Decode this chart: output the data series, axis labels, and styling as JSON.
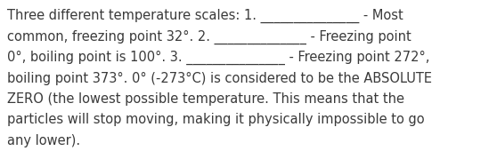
{
  "background_color": "#ffffff",
  "text_color": "#3a3a3a",
  "font_size": 10.5,
  "line1": "Three different temperature scales: 1. _______________ - Most",
  "line2": "common, freezing point 32°. 2. ______________ - Freezing point",
  "line3": "0°, boiling point is 100°. 3. _______________ - Freezing point 272°,",
  "line4": "boiling point 373°. 0° (-273°C) is considered to be the ABSOLUTE",
  "line5": "ZERO (the lowest possible temperature. This means that the",
  "line6": "particles will stop moving, making it physically impossible to go",
  "line7": "any lower)."
}
